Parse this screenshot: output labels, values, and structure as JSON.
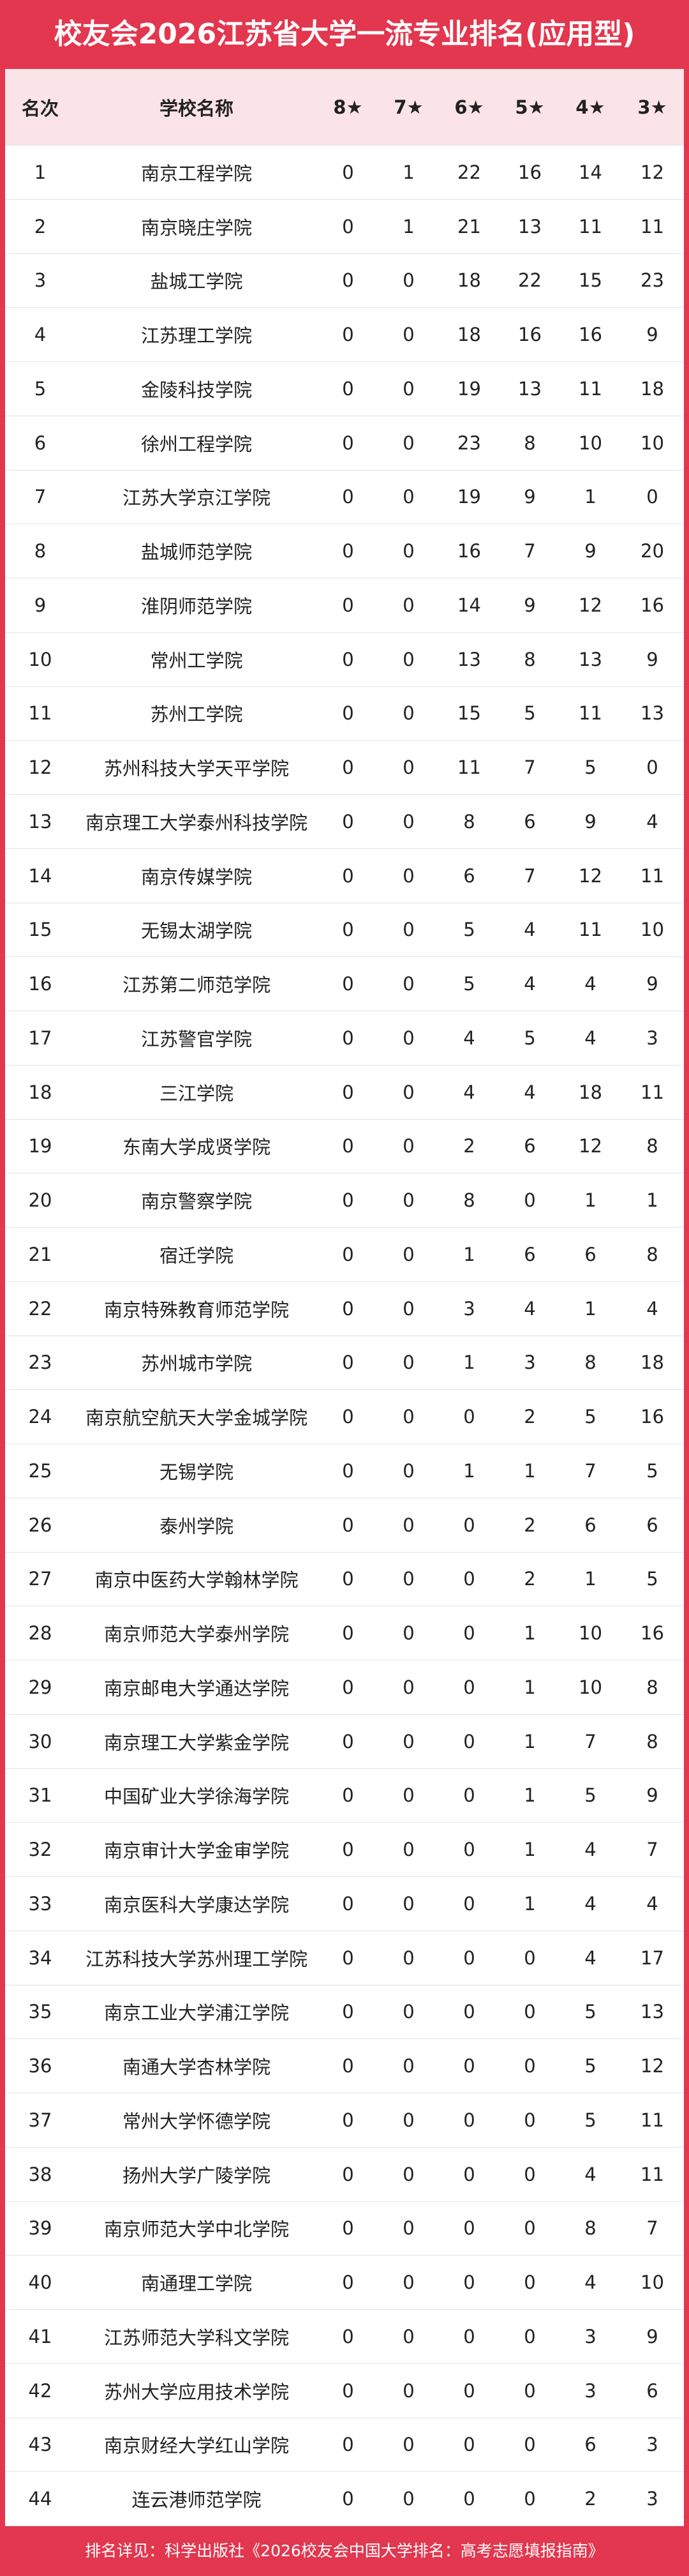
{
  "title": "校友会2026江苏省大学一流专业排名(应用型)",
  "table": {
    "header": [
      "名次",
      "学校名称",
      "8★",
      "7★",
      "6★",
      "5★",
      "4★",
      "3★"
    ],
    "rows": [
      [
        1,
        "南京工程学院",
        0,
        1,
        22,
        16,
        14,
        12
      ],
      [
        2,
        "南京晓庄学院",
        0,
        1,
        21,
        13,
        11,
        11
      ],
      [
        3,
        "盐城工学院",
        0,
        0,
        18,
        22,
        15,
        23
      ],
      [
        4,
        "江苏理工学院",
        0,
        0,
        18,
        16,
        16,
        9
      ],
      [
        5,
        "金陵科技学院",
        0,
        0,
        19,
        13,
        11,
        18
      ],
      [
        6,
        "徐州工程学院",
        0,
        0,
        23,
        8,
        10,
        10
      ],
      [
        7,
        "江苏大学京江学院",
        0,
        0,
        19,
        9,
        1,
        0
      ],
      [
        8,
        "盐城师范学院",
        0,
        0,
        16,
        7,
        9,
        20
      ],
      [
        9,
        "淮阴师范学院",
        0,
        0,
        14,
        9,
        12,
        16
      ],
      [
        10,
        "常州工学院",
        0,
        0,
        13,
        8,
        13,
        9
      ],
      [
        11,
        "苏州工学院",
        0,
        0,
        15,
        5,
        11,
        13
      ],
      [
        12,
        "苏州科技大学天平学院",
        0,
        0,
        11,
        7,
        5,
        0
      ],
      [
        13,
        "南京理工大学泰州科技学院",
        0,
        0,
        8,
        6,
        9,
        4
      ],
      [
        14,
        "南京传媒学院",
        0,
        0,
        6,
        7,
        12,
        11
      ],
      [
        15,
        "无锡太湖学院",
        0,
        0,
        5,
        4,
        11,
        10
      ],
      [
        16,
        "江苏第二师范学院",
        0,
        0,
        5,
        4,
        4,
        9
      ],
      [
        17,
        "江苏警官学院",
        0,
        0,
        4,
        5,
        4,
        3
      ],
      [
        18,
        "三江学院",
        0,
        0,
        4,
        4,
        18,
        11
      ],
      [
        19,
        "东南大学成贤学院",
        0,
        0,
        2,
        6,
        12,
        8
      ],
      [
        20,
        "南京警察学院",
        0,
        0,
        8,
        0,
        1,
        1
      ],
      [
        21,
        "宿迁学院",
        0,
        0,
        1,
        6,
        6,
        8
      ],
      [
        22,
        "南京特殊教育师范学院",
        0,
        0,
        3,
        4,
        1,
        4
      ],
      [
        23,
        "苏州城市学院",
        0,
        0,
        1,
        3,
        8,
        18
      ],
      [
        24,
        "南京航空航天大学金城学院",
        0,
        0,
        0,
        2,
        5,
        16
      ],
      [
        25,
        "无锡学院",
        0,
        0,
        1,
        1,
        7,
        5
      ],
      [
        26,
        "泰州学院",
        0,
        0,
        0,
        2,
        6,
        6
      ],
      [
        27,
        "南京中医药大学翰林学院",
        0,
        0,
        0,
        2,
        1,
        5
      ],
      [
        28,
        "南京师范大学泰州学院",
        0,
        0,
        0,
        1,
        10,
        16
      ],
      [
        29,
        "南京邮电大学通达学院",
        0,
        0,
        0,
        1,
        10,
        8
      ],
      [
        30,
        "南京理工大学紫金学院",
        0,
        0,
        0,
        1,
        7,
        8
      ],
      [
        31,
        "中国矿业大学徐海学院",
        0,
        0,
        0,
        1,
        5,
        9
      ],
      [
        32,
        "南京审计大学金审学院",
        0,
        0,
        0,
        1,
        4,
        7
      ],
      [
        33,
        "南京医科大学康达学院",
        0,
        0,
        0,
        1,
        4,
        4
      ],
      [
        34,
        "江苏科技大学苏州理工学院",
        0,
        0,
        0,
        0,
        4,
        17
      ],
      [
        35,
        "南京工业大学浦江学院",
        0,
        0,
        0,
        0,
        5,
        13
      ],
      [
        36,
        "南通大学杏林学院",
        0,
        0,
        0,
        0,
        5,
        12
      ],
      [
        37,
        "常州大学怀德学院",
        0,
        0,
        0,
        0,
        5,
        11
      ],
      [
        38,
        "扬州大学广陵学院",
        0,
        0,
        0,
        0,
        4,
        11
      ],
      [
        39,
        "南京师范大学中北学院",
        0,
        0,
        0,
        0,
        8,
        7
      ],
      [
        40,
        "南通理工学院",
        0,
        0,
        0,
        0,
        4,
        10
      ],
      [
        41,
        "江苏师范大学科文学院",
        0,
        0,
        0,
        0,
        3,
        9
      ],
      [
        42,
        "苏州大学应用技术学院",
        0,
        0,
        0,
        0,
        3,
        6
      ],
      [
        43,
        "南京财经大学红山学院",
        0,
        0,
        0,
        0,
        6,
        3
      ],
      [
        44,
        "连云港师范学院",
        0,
        0,
        0,
        0,
        2,
        3
      ]
    ]
  },
  "footer": "排名详见：科学出版社《2026校友会中国大学排名：高考志愿填报指南》"
}
